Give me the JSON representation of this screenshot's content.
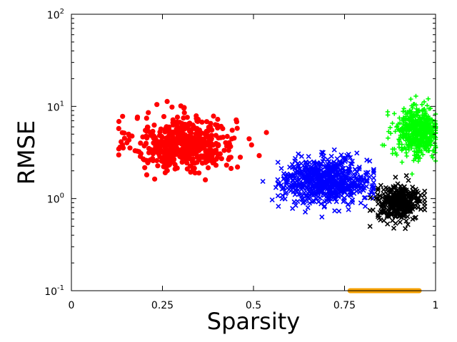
{
  "chart_data": {
    "type": "scatter",
    "title": "",
    "xlabel": "Sparsity",
    "ylabel": "RMSE",
    "xlim": [
      0,
      1
    ],
    "ylim": [
      0.1,
      100
    ],
    "yscale": "log",
    "grid": false,
    "x_ticks": [
      {
        "value": 0,
        "label": "0"
      },
      {
        "value": 0.25,
        "label": "0.25"
      },
      {
        "value": 0.5,
        "label": "0.5"
      },
      {
        "value": 0.75,
        "label": "0.75"
      },
      {
        "value": 1,
        "label": "1"
      }
    ],
    "y_ticks": [
      {
        "value": 0.1,
        "base": "10",
        "exp": "-1"
      },
      {
        "value": 1,
        "base": "10",
        "exp": "0"
      },
      {
        "value": 10,
        "base": "10",
        "exp": "1"
      },
      {
        "value": 100,
        "base": "10",
        "exp": "2"
      }
    ],
    "series": [
      {
        "marker": "circle",
        "color": "#ff0000",
        "count": 520,
        "x_center": 0.31,
        "x_spread": 0.07,
        "x_min": 0.13,
        "x_max": 0.58,
        "log10_y_center": 0.6,
        "log10_y_spread": 0.15,
        "log10_y_min": 0.12,
        "log10_y_max": 1.22
      },
      {
        "marker": "x",
        "color": "#0000ff",
        "count": 700,
        "x_center": 0.7,
        "x_spread": 0.06,
        "x_min": 0.49,
        "x_max": 0.83,
        "log10_y_center": 0.19,
        "log10_y_spread": 0.12,
        "log10_y_min": -0.2,
        "log10_y_max": 0.66
      },
      {
        "marker": "x",
        "color": "#000000",
        "count": 350,
        "x_center": 0.9,
        "x_spread": 0.03,
        "x_min": 0.82,
        "x_max": 0.97,
        "log10_y_center": -0.05,
        "log10_y_spread": 0.09,
        "log10_y_min": -0.4,
        "log10_y_max": 0.35
      },
      {
        "marker": "plus",
        "color": "#00ff00",
        "count": 550,
        "x_center": 0.95,
        "x_spread": 0.03,
        "x_min": 0.85,
        "x_max": 1.0,
        "log10_y_center": 0.72,
        "log10_y_spread": 0.14,
        "log10_y_min": 0.2,
        "log10_y_max": 1.3
      }
    ],
    "orange_band": {
      "x_start": 0.765,
      "x_end": 0.955,
      "y": 0.1,
      "color": "#f5a000"
    }
  }
}
